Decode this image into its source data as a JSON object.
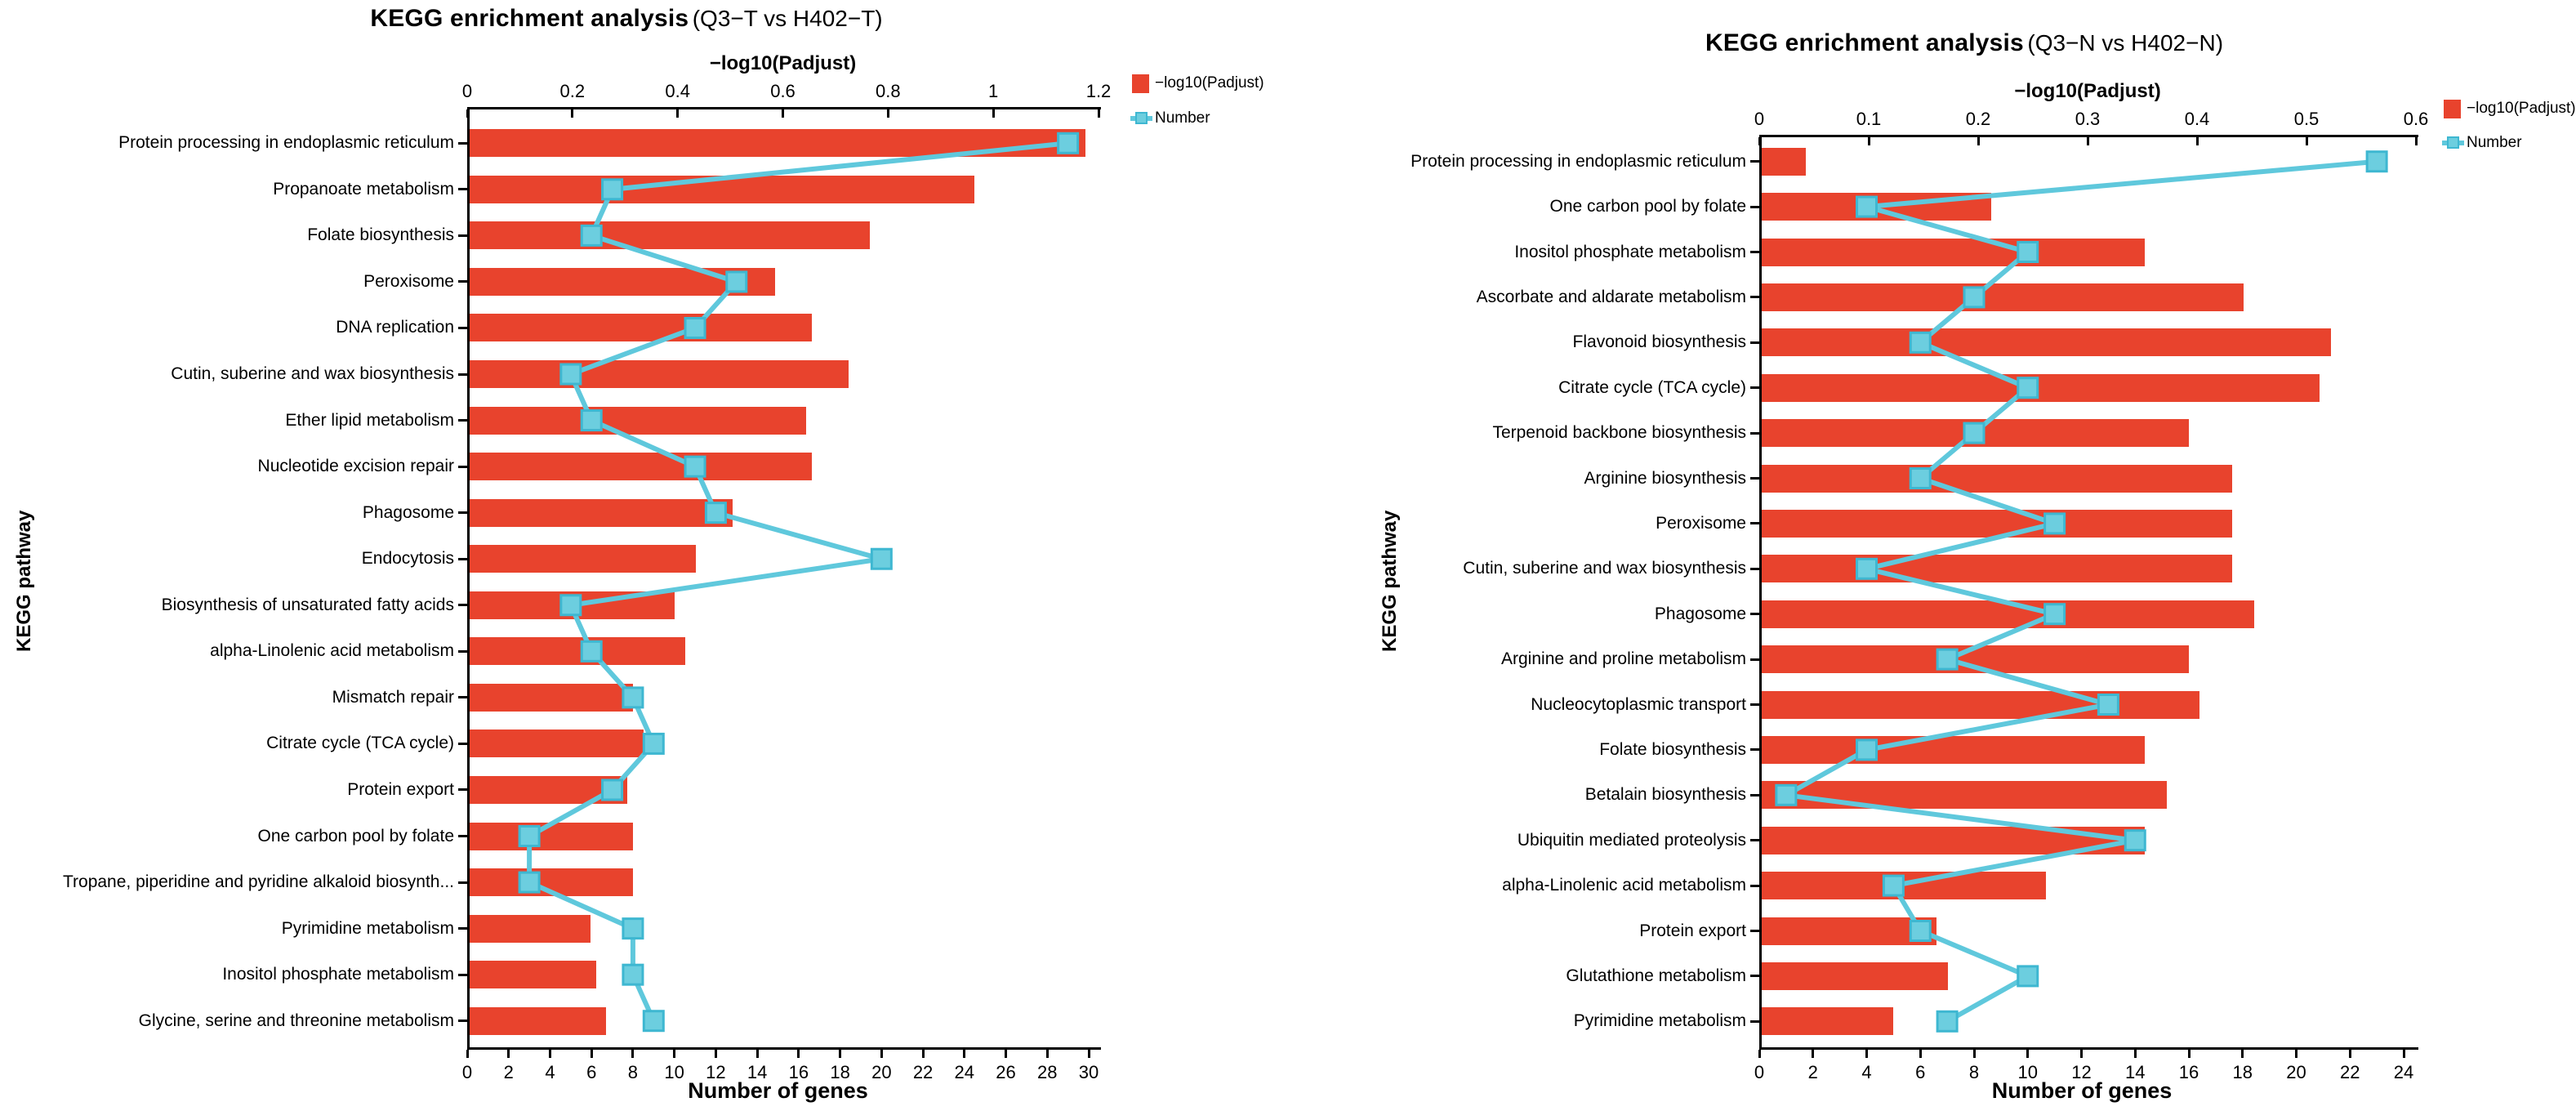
{
  "figure_type": "dual-axis horizontal bar + line enrichment plots",
  "colors": {
    "bar": "#E8432D",
    "line": "#5FC8DC",
    "marker_fill": "#6CCEDF",
    "marker_border": "#3EB7D1",
    "axis": "#000000",
    "text": "#000000"
  },
  "panels": [
    {
      "title_main": "KEGG enrichment analysis",
      "title_sub": "(Q3−T vs H402−T)",
      "y_axis_label": "KEGG pathway",
      "top_axis": {
        "title": "−log10(Padjust)",
        "tick_labels": [
          "0",
          "0.2",
          "0.4",
          "0.6",
          "0.8",
          "1",
          "1.2"
        ],
        "min": 0,
        "max": 1.2
      },
      "bottom_axis": {
        "title": "Number of genes",
        "tick_labels": [
          "0",
          "2",
          "4",
          "6",
          "8",
          "10",
          "12",
          "14",
          "16",
          "18",
          "20",
          "22",
          "24",
          "26",
          "28",
          "30"
        ],
        "min": 0,
        "max": 30
      },
      "legend": [
        {
          "label": "−log10(Padjust)",
          "type": "bar"
        },
        {
          "label": "Number",
          "type": "line"
        }
      ]
    },
    {
      "title_main": "KEGG enrichment analysis",
      "title_sub": "(Q3−N vs H402−N)",
      "y_axis_label": "KEGG pathway",
      "top_axis": {
        "title": "−log10(Padjust)",
        "tick_labels": [
          "0",
          "0.1",
          "0.2",
          "0.3",
          "0.4",
          "0.5",
          "0.6"
        ],
        "min": 0,
        "max": 0.6
      },
      "bottom_axis": {
        "title": "Number of genes",
        "tick_labels": [
          "0",
          "2",
          "4",
          "6",
          "8",
          "10",
          "12",
          "14",
          "16",
          "18",
          "20",
          "22",
          "24"
        ],
        "min": 0,
        "max": 24
      },
      "legend": [
        {
          "label": "−log10(Padjust)",
          "type": "bar"
        },
        {
          "label": "Number",
          "type": "line"
        }
      ]
    }
  ],
  "chart_data": [
    {
      "type": "bar",
      "subtype": "horizontal bars (top axis) with overlaid line+square markers (bottom axis)",
      "title": "KEGG enrichment analysis (Q3−T vs H402−T)",
      "ylabel": "KEGG pathway",
      "top_xlabel": "−log10(Padjust)",
      "top_xlim": [
        0,
        1.2
      ],
      "bottom_xlabel": "Number of genes",
      "bottom_xlim": [
        0,
        30
      ],
      "grid": false,
      "legend_position": "top-right",
      "categories": [
        "Protein processing in endoplasmic reticulum",
        "Propanoate metabolism",
        "Folate biosynthesis",
        "Peroxisome",
        "DNA replication",
        "Cutin, suberine and wax biosynthesis",
        "Ether lipid metabolism",
        "Nucleotide excision repair",
        "Phagosome",
        "Endocytosis",
        "Biosynthesis of unsaturated fatty acids",
        "alpha-Linolenic acid metabolism",
        "Mismatch repair",
        "Citrate cycle (TCA cycle)",
        "Protein export",
        "One carbon pool by folate",
        "Tropane, piperidine and pyridine alkaloid biosynth...",
        "Pyrimidine metabolism",
        "Inositol phosphate metabolism",
        "Glycine, serine and threonine metabolism"
      ],
      "series": [
        {
          "name": "−log10(Padjust)",
          "type": "bar",
          "axis": "top",
          "values": [
            1.17,
            0.96,
            0.76,
            0.58,
            0.65,
            0.72,
            0.64,
            0.65,
            0.5,
            0.43,
            0.39,
            0.41,
            0.31,
            0.33,
            0.3,
            0.31,
            0.31,
            0.23,
            0.24,
            0.26
          ]
        },
        {
          "name": "Number",
          "type": "line",
          "axis": "bottom",
          "values": [
            29,
            7,
            6,
            13,
            11,
            5,
            6,
            11,
            12,
            20,
            5,
            6,
            8,
            9,
            7,
            3,
            3,
            8,
            8,
            9
          ]
        }
      ]
    },
    {
      "type": "bar",
      "subtype": "horizontal bars (top axis) with overlaid line+square markers (bottom axis)",
      "title": "KEGG enrichment analysis (Q3−N vs H402−N)",
      "ylabel": "KEGG pathway",
      "top_xlabel": "−log10(Padjust)",
      "top_xlim": [
        0,
        0.6
      ],
      "bottom_xlabel": "Number of genes",
      "bottom_xlim": [
        0,
        24
      ],
      "grid": false,
      "legend_position": "top-right",
      "categories": [
        "Protein processing in endoplasmic reticulum",
        "One carbon pool by folate",
        "Inositol phosphate metabolism",
        "Ascorbate and aldarate metabolism",
        "Flavonoid biosynthesis",
        "Citrate cycle (TCA cycle)",
        "Terpenoid backbone biosynthesis",
        "Arginine biosynthesis",
        "Peroxisome",
        "Cutin, suberine and wax biosynthesis",
        "Phagosome",
        "Arginine and proline metabolism",
        "Nucleocytoplasmic transport",
        "Folate biosynthesis",
        "Betalain biosynthesis",
        "Ubiquitin mediated proteolysis",
        "alpha-Linolenic acid metabolism",
        "Protein export",
        "Glutathione metabolism",
        "Pyrimidine metabolism"
      ],
      "series": [
        {
          "name": "−log10(Padjust)",
          "type": "bar",
          "axis": "top",
          "values": [
            0.04,
            0.21,
            0.35,
            0.44,
            0.52,
            0.51,
            0.39,
            0.43,
            0.43,
            0.43,
            0.45,
            0.39,
            0.4,
            0.35,
            0.37,
            0.35,
            0.26,
            0.16,
            0.17,
            0.12
          ]
        },
        {
          "name": "Number",
          "type": "line",
          "axis": "bottom",
          "values": [
            23,
            4,
            10,
            8,
            6,
            10,
            8,
            6,
            11,
            4,
            11,
            7,
            13,
            4,
            1,
            14,
            5,
            6,
            10,
            7
          ]
        }
      ]
    }
  ]
}
